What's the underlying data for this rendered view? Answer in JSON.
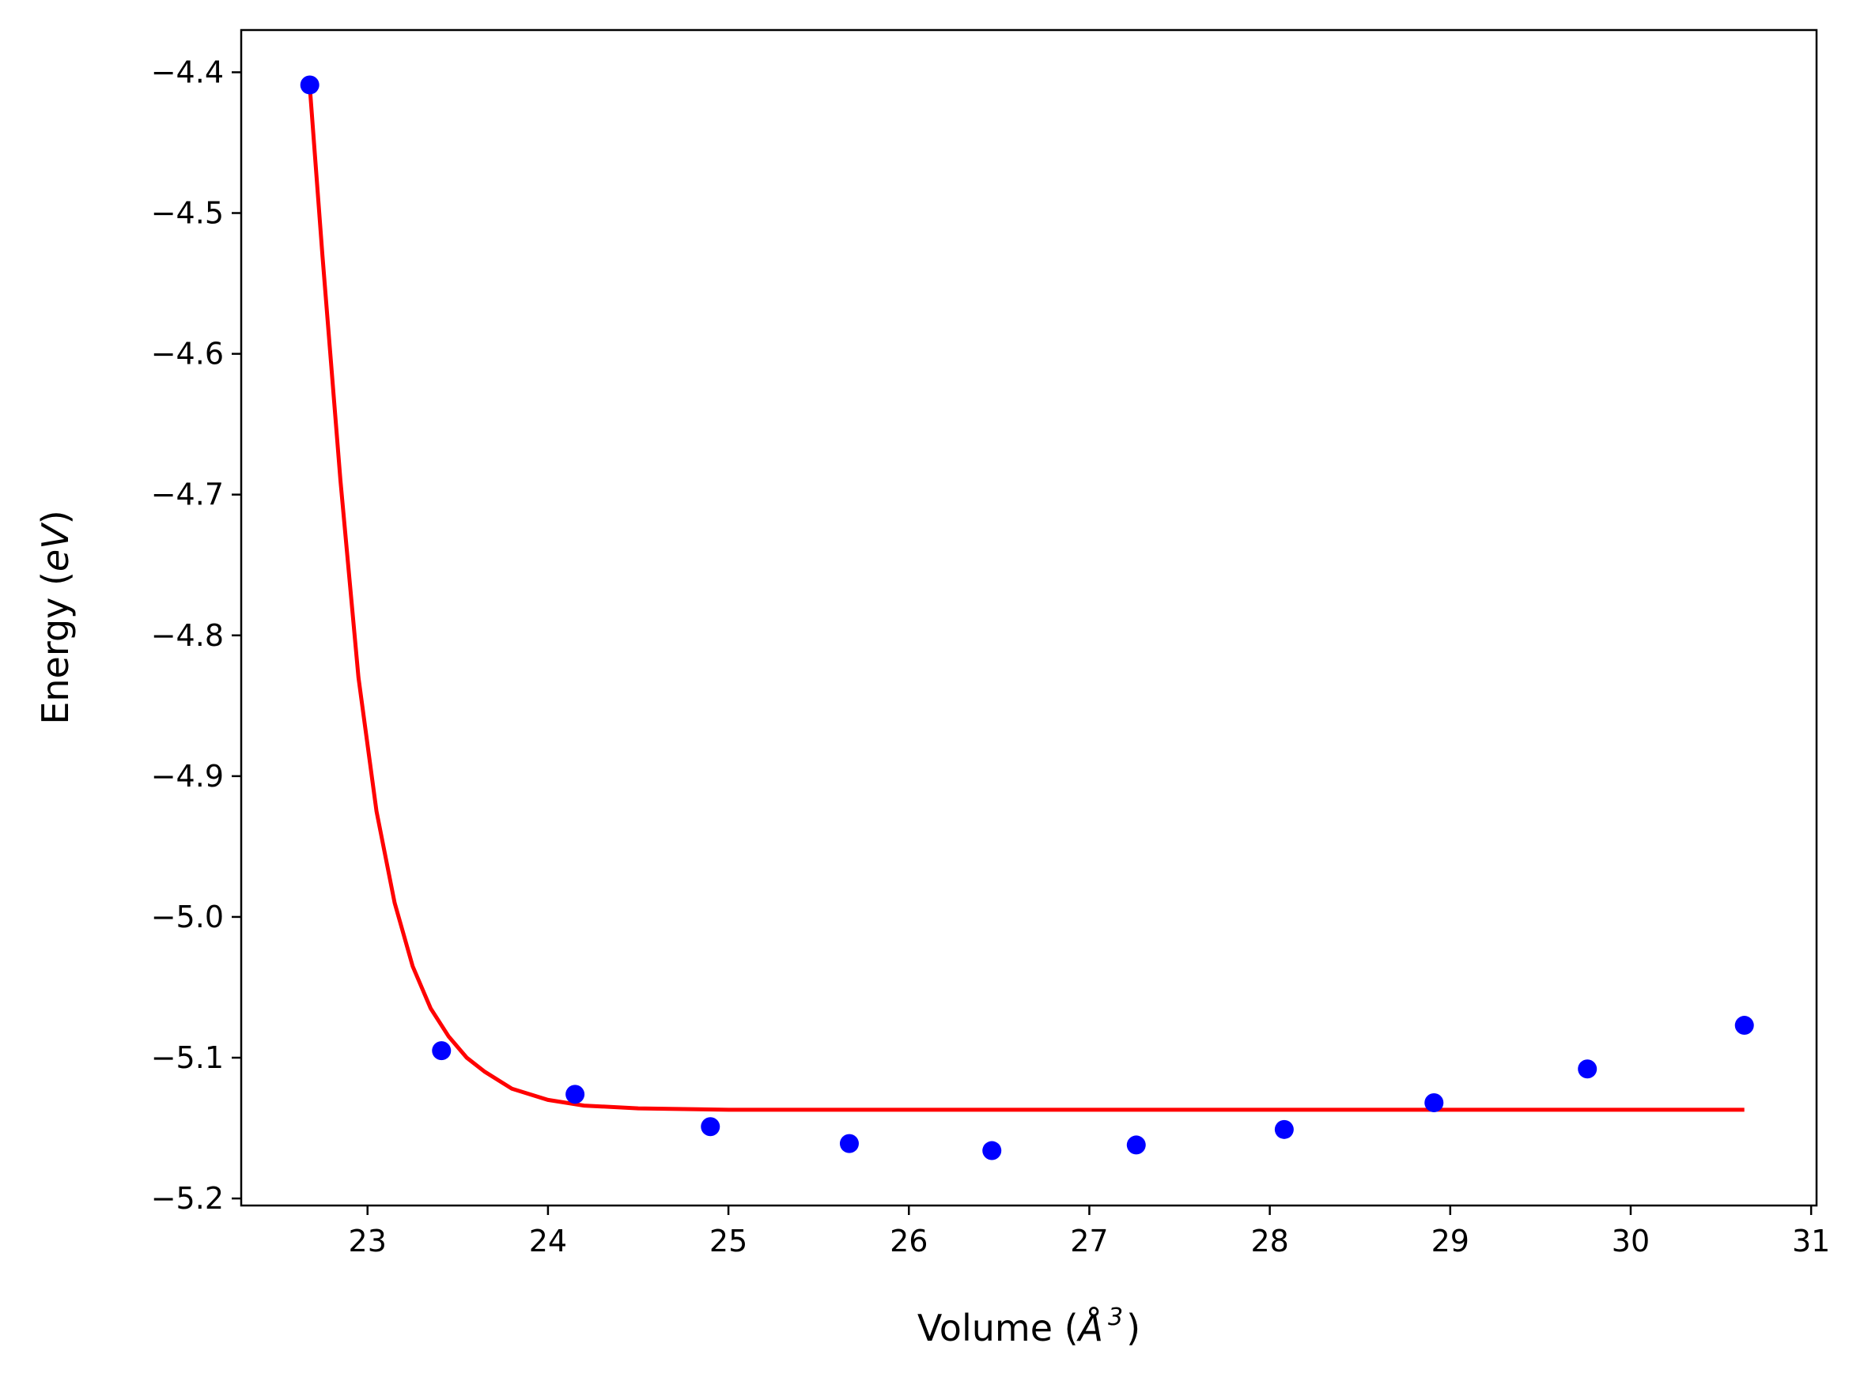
{
  "chart_data": {
    "type": "scatter",
    "title": "",
    "xlabel_prefix": "Volume (",
    "xlabel_unit": "Å",
    "xlabel_exp": "3",
    "xlabel_suffix": ")",
    "ylabel_prefix": "Energy (",
    "ylabel_unit": "eV",
    "ylabel_suffix": ")",
    "xlim": [
      22.3,
      31.03
    ],
    "ylim": [
      -5.205,
      -4.37
    ],
    "xticks": [
      23,
      24,
      25,
      26,
      27,
      28,
      29,
      30,
      31
    ],
    "yticks": [
      -4.4,
      -4.5,
      -4.6,
      -4.7,
      -4.8,
      -4.9,
      -5.0,
      -5.1,
      -5.2
    ],
    "ytick_labels": [
      "−4.4",
      "−4.5",
      "−4.6",
      "−4.7",
      "−4.8",
      "−4.9",
      "−5.0",
      "−5.1",
      "−5.2"
    ],
    "grid": false,
    "legend": "none",
    "points": {
      "color": "#0000ff",
      "x": [
        22.68,
        23.41,
        24.15,
        24.9,
        25.67,
        26.46,
        27.26,
        28.08,
        28.91,
        29.76,
        30.63
      ],
      "y": [
        -4.409,
        -5.095,
        -5.126,
        -5.149,
        -5.161,
        -5.166,
        -5.162,
        -5.151,
        -5.132,
        -5.108,
        -5.077
      ]
    },
    "fit": {
      "color": "#ff0000",
      "x": [
        22.68,
        22.75,
        22.85,
        22.95,
        23.05,
        23.15,
        23.25,
        23.35,
        23.45,
        23.55,
        23.65,
        23.8,
        24.0,
        24.2,
        24.5,
        25.0,
        26.0,
        27.0,
        28.0,
        29.0,
        30.0,
        30.63
      ],
      "y": [
        -4.41,
        -4.53,
        -4.69,
        -4.83,
        -4.925,
        -4.99,
        -5.035,
        -5.065,
        -5.085,
        -5.1,
        -5.11,
        -5.122,
        -5.13,
        -5.134,
        -5.136,
        -5.137,
        -5.137,
        -5.137,
        -5.137,
        -5.137,
        -5.137,
        -5.137
      ]
    }
  }
}
